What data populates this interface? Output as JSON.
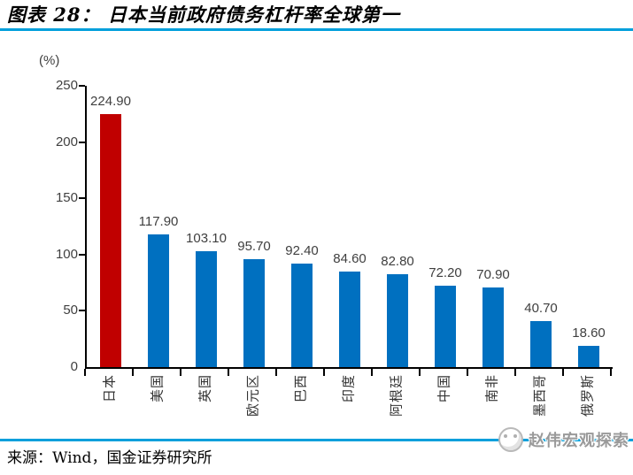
{
  "header": {
    "title": "图表 28： 日本当前政府债务杠杆率全球第一"
  },
  "source": {
    "text": "来源：Wind，国金证券研究所"
  },
  "watermark": {
    "text": "赵伟宏观探索",
    "icon": "panda-logo-icon"
  },
  "colors": {
    "rule": "#009FDB",
    "bar": "#0070C0",
    "bar_highlight": "#C00000",
    "axis": "#000000",
    "label": "#3F3F3F"
  },
  "chart_data": {
    "type": "bar",
    "title": "图表 28： 日本当前政府债务杠杆率全球第一",
    "unit_label": "(%)",
    "categories": [
      "日本",
      "美国",
      "英国",
      "欧元区",
      "巴西",
      "印度",
      "阿根廷",
      "中国",
      "南非",
      "墨西哥",
      "俄罗斯"
    ],
    "values": [
      224.9,
      117.9,
      103.1,
      95.7,
      92.4,
      84.6,
      82.8,
      72.2,
      70.9,
      40.7,
      18.6
    ],
    "value_labels": [
      "224.90",
      "117.90",
      "103.10",
      "95.70",
      "92.40",
      "84.60",
      "82.80",
      "72.20",
      "70.90",
      "40.70",
      "18.60"
    ],
    "highlight_index": 0,
    "highlight_category": "日本",
    "xlabel": "",
    "ylabel": "(%)",
    "ylim": [
      0,
      250
    ],
    "yticks": [
      0,
      50,
      100,
      150,
      200,
      250
    ],
    "grid": false,
    "legend": null,
    "bar_orientation": "vertical",
    "x_tick_label_rotation": -90
  }
}
